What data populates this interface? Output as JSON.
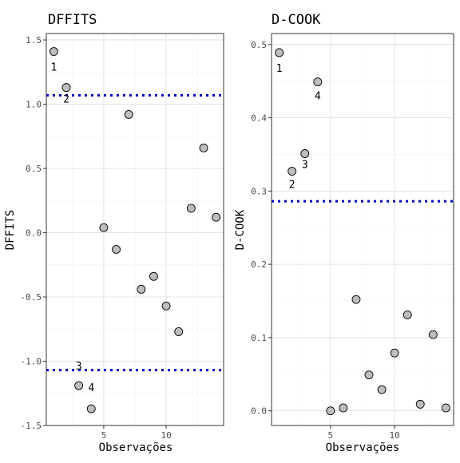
{
  "chart_data": [
    {
      "type": "scatter",
      "title": "DFFITS",
      "xlabel": "Observações",
      "ylabel": "DFFITS",
      "xlim": [
        0.4,
        14.6
      ],
      "ylim": [
        -1.5,
        1.55
      ],
      "x_ticks": [
        5,
        10
      ],
      "y_ticks": [
        -1.5,
        -1.0,
        -0.5,
        0.0,
        0.5,
        1.0,
        1.5
      ],
      "y_tick_labels": [
        "-1.5",
        "-1.0",
        "-0.5",
        "0.0",
        "0.5",
        "1.0",
        "1.5"
      ],
      "grid": true,
      "x": [
        1,
        2,
        3,
        4,
        5,
        6,
        7,
        8,
        9,
        10,
        11,
        12,
        13,
        14
      ],
      "y": [
        1.41,
        1.13,
        -1.19,
        -1.37,
        0.04,
        -0.13,
        0.92,
        -0.44,
        -0.34,
        -0.57,
        -0.77,
        0.19,
        0.66,
        0.12
      ],
      "thresholds": [
        1.069,
        -1.069
      ],
      "threshold_color": "#0000cc",
      "point_labels": [
        {
          "index": 0,
          "text": "1"
        },
        {
          "index": 1,
          "text": "2"
        },
        {
          "index": 2,
          "text": "3"
        },
        {
          "index": 3,
          "text": "4"
        }
      ]
    },
    {
      "type": "scatter",
      "title": "D-COOK",
      "xlabel": "Observações",
      "ylabel": "D-COOK",
      "xlim": [
        0.4,
        14.6
      ],
      "ylim": [
        -0.02,
        0.515
      ],
      "x_ticks": [
        5,
        10
      ],
      "y_ticks": [
        0.0,
        0.1,
        0.2,
        0.3,
        0.4,
        0.5
      ],
      "y_tick_labels": [
        "0.0",
        "0.1",
        "0.2",
        "0.3",
        "0.4",
        "0.5"
      ],
      "grid": true,
      "x": [
        1,
        2,
        3,
        4,
        5,
        6,
        7,
        8,
        9,
        10,
        11,
        12,
        13,
        14
      ],
      "y": [
        0.489,
        0.327,
        0.351,
        0.449,
        0.0,
        0.004,
        0.152,
        0.049,
        0.029,
        0.079,
        0.131,
        0.009,
        0.104,
        0.004
      ],
      "thresholds": [
        0.286
      ],
      "threshold_color": "#0000cc",
      "point_labels": [
        {
          "index": 0,
          "text": "1"
        },
        {
          "index": 1,
          "text": "2"
        },
        {
          "index": 2,
          "text": "3"
        },
        {
          "index": 3,
          "text": "4"
        }
      ]
    }
  ]
}
